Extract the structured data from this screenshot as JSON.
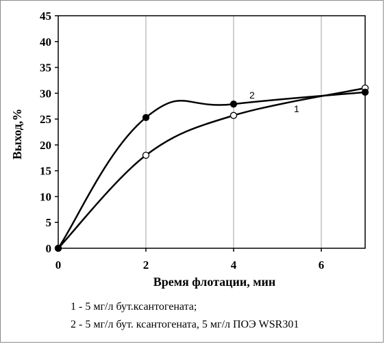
{
  "chart_data": {
    "type": "line",
    "xlabel": "Время флотации, мин",
    "ylabel": "Выход,%",
    "xlim": [
      0,
      7
    ],
    "ylim": [
      0,
      45
    ],
    "xticks": [
      0,
      2,
      4,
      6
    ],
    "yticks": [
      0,
      5,
      10,
      15,
      20,
      25,
      30,
      35,
      40,
      45
    ],
    "grid": "vertical",
    "series": [
      {
        "name": "1",
        "marker": "open-circle",
        "x": [
          0,
          2,
          4,
          7
        ],
        "y": [
          0,
          18,
          25.7,
          31
        ]
      },
      {
        "name": "2",
        "marker": "filled-circle",
        "x": [
          0,
          2,
          4,
          7
        ],
        "y": [
          0,
          25.3,
          27.9,
          30.2
        ]
      }
    ],
    "legend": [
      "1 - 5  мг/л бут.ксантогената;",
      "2 - 5 мг/л бут. ксантогената, 5 мг/л ПОЭ WSR301"
    ]
  }
}
